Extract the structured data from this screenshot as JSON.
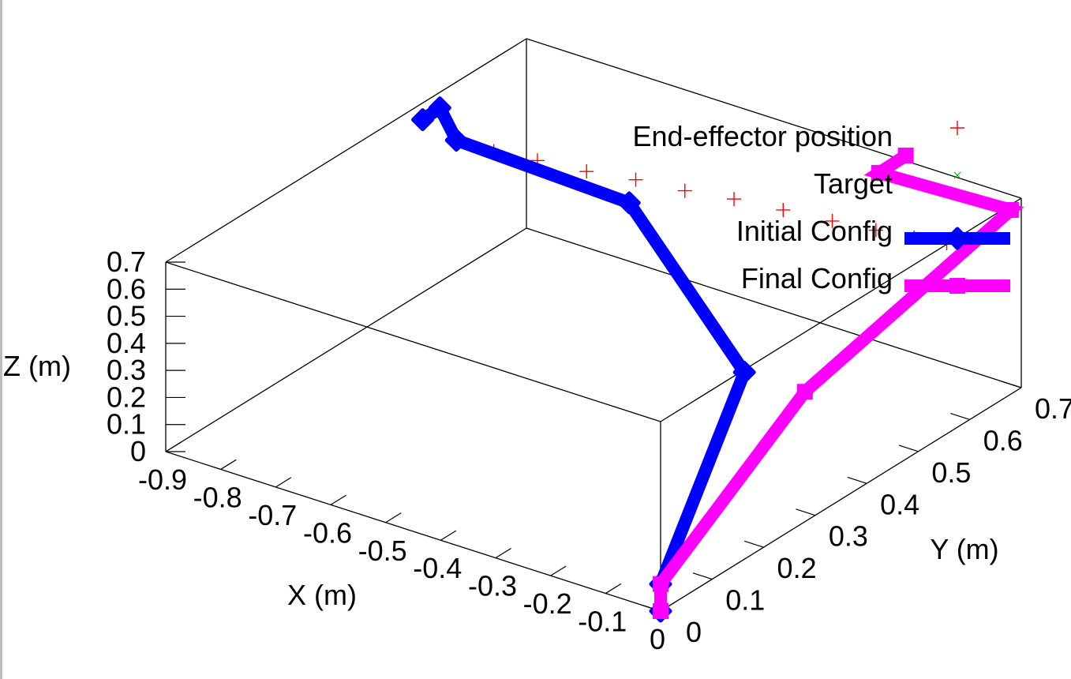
{
  "chart_data": {
    "type": "line3d",
    "xlabel": "X (m)",
    "ylabel": "Y (m)",
    "zlabel": "Z (m)",
    "xlim": [
      -0.9,
      0
    ],
    "ylim": [
      0,
      0.7
    ],
    "zlim": [
      0,
      0.7
    ],
    "x_ticks": [
      "-0.9",
      "-0.8",
      "-0.7",
      "-0.6",
      "-0.5",
      "-0.4",
      "-0.3",
      "-0.2",
      "-0.1",
      "0"
    ],
    "y_ticks": [
      "0",
      "0.1",
      "0.2",
      "0.3",
      "0.4",
      "0.5",
      "0.6",
      "0.7"
    ],
    "z_ticks": [
      "0",
      "0.1",
      "0.2",
      "0.3",
      "0.4",
      "0.5",
      "0.6",
      "0.7"
    ],
    "legend_position": "top-right",
    "series": [
      {
        "name": "End-effector position",
        "style": "points",
        "marker": "plus",
        "color": "#ff0000",
        "points": [
          [
            -0.86,
            0.52,
            0.55
          ],
          [
            -0.8,
            0.53,
            0.55
          ],
          [
            -0.73,
            0.54,
            0.55
          ],
          [
            -0.65,
            0.55,
            0.55
          ],
          [
            -0.57,
            0.56,
            0.56
          ],
          [
            -0.49,
            0.57,
            0.56
          ],
          [
            -0.41,
            0.58,
            0.57
          ],
          [
            -0.33,
            0.59,
            0.57
          ],
          [
            -0.25,
            0.6,
            0.57
          ],
          [
            -0.18,
            0.61,
            0.57
          ],
          [
            -0.12,
            0.62,
            0.57
          ],
          [
            -0.07,
            0.63,
            0.57
          ]
        ]
      },
      {
        "name": "Target",
        "style": "points",
        "marker": "cross",
        "color": "#00c000",
        "points": []
      },
      {
        "name": "Initial Config",
        "style": "linespoints",
        "marker": "diamond",
        "color": "#0000ff",
        "points": [
          [
            0,
            0,
            0
          ],
          [
            0,
            0,
            0.1
          ],
          [
            -0.11,
            0.28,
            0.48
          ],
          [
            -0.46,
            0.43,
            0.7
          ],
          [
            -0.84,
            0.5,
            0.6
          ],
          [
            -0.87,
            0.5,
            0.7
          ],
          [
            -0.92,
            0.52,
            0.6
          ]
        ]
      },
      {
        "name": "Final Config",
        "style": "linespoints",
        "marker": "square",
        "color": "#ff00ff",
        "points": [
          [
            0,
            0,
            0
          ],
          [
            0,
            0,
            0.1
          ],
          [
            0,
            0.28,
            0.48
          ],
          [
            0,
            0.68,
            0.68
          ],
          [
            -0.24,
            0.68,
            0.66
          ],
          [
            -0.21,
            0.7,
            0.72
          ]
        ]
      }
    ]
  }
}
